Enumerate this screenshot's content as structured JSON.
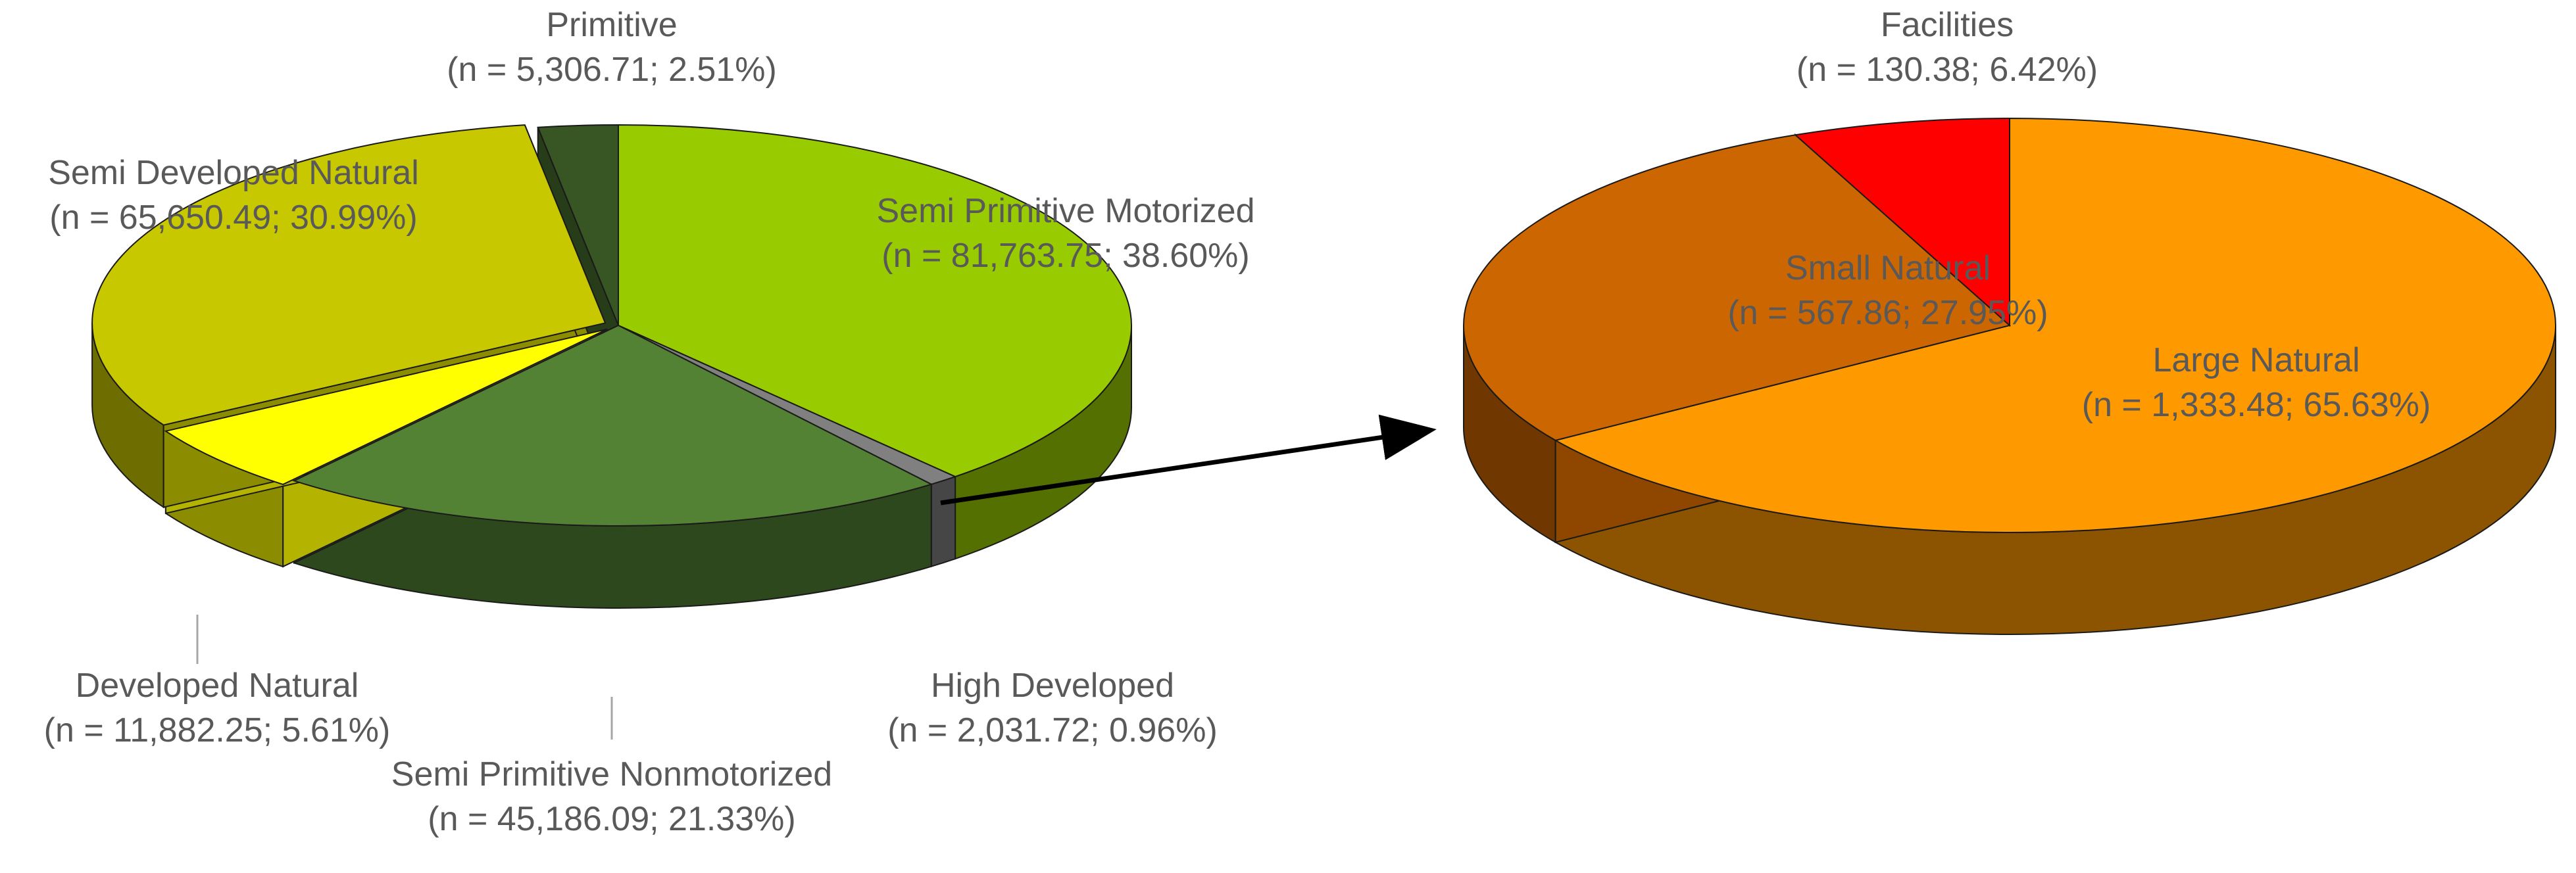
{
  "chart_data": [
    {
      "type": "pie",
      "title": "",
      "style": "3d-pie",
      "slices": [
        {
          "name": "Semi Primitive Motorized",
          "value": 81763.75,
          "percent": 38.6,
          "value_text": "81,763.75",
          "percent_text": "38.60%",
          "color": "#99CC00"
        },
        {
          "name": "High Developed",
          "value": 2031.72,
          "percent": 0.96,
          "value_text": "2,031.72",
          "percent_text": "0.96%",
          "color": "#808080"
        },
        {
          "name": "Semi Primitive Nonmotorized",
          "value": 45186.09,
          "percent": 21.33,
          "value_text": "45,186.09",
          "percent_text": "21.33%",
          "color": "#548235"
        },
        {
          "name": "Developed Natural",
          "value": 11882.25,
          "percent": 5.61,
          "value_text": "11,882.25",
          "percent_text": "5.61%",
          "color": "#FFFF00"
        },
        {
          "name": "Semi Developed Natural",
          "value": 65650.49,
          "percent": 30.99,
          "value_text": "65,650.49",
          "percent_text": "30.99%",
          "color": "#C8C800"
        },
        {
          "name": "Primitive",
          "value": 5306.71,
          "percent": 2.51,
          "value_text": "5,306.71",
          "percent_text": "2.51%",
          "color": "#375623"
        }
      ]
    },
    {
      "type": "pie",
      "title": "",
      "style": "3d-pie",
      "breakdown_of": "High Developed",
      "slices": [
        {
          "name": "Large Natural",
          "value": 1333.48,
          "percent": 65.63,
          "value_text": "1,333.48",
          "percent_text": "65.63%",
          "color": "#FF9900"
        },
        {
          "name": "Small Natural",
          "value": 567.86,
          "percent": 27.95,
          "value_text": "567.86",
          "percent_text": "27.95%",
          "color": "#CC6600"
        },
        {
          "name": "Facilities",
          "value": 130.38,
          "percent": 6.42,
          "value_text": "130.38",
          "percent_text": "6.42%",
          "color": "#FF0000"
        }
      ]
    }
  ],
  "labels": {
    "n_prefix": "(n = ",
    "separator": "; ",
    "suffix": ")"
  }
}
